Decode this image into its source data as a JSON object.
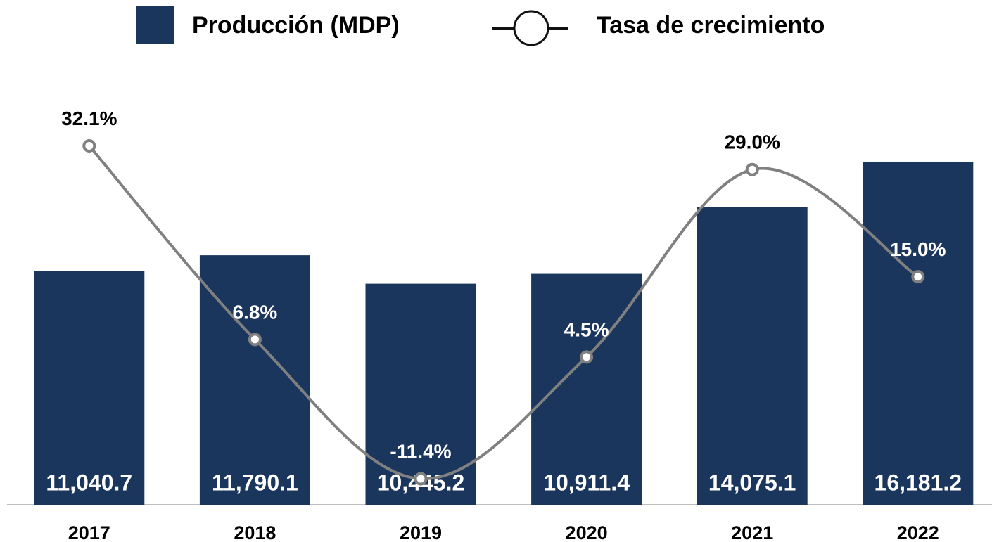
{
  "chart_data": {
    "type": "bar_line",
    "categories": [
      "2017",
      "2018",
      "2019",
      "2020",
      "2021",
      "2022"
    ],
    "series": [
      {
        "name": "Producción (MDP)",
        "type": "bar",
        "color": "#1b365d",
        "values": [
          11040.7,
          11790.1,
          10445.2,
          10911.4,
          14075.1,
          16181.2
        ],
        "value_labels": [
          "11,040.7",
          "11,790.1",
          "10,445.2",
          "10,911.4",
          "14,075.1",
          "16,181.2"
        ]
      },
      {
        "name": "Tasa de crecimiento",
        "type": "line",
        "axis": "y2",
        "color": "#808080",
        "values": [
          32.1,
          6.8,
          -11.4,
          4.5,
          29.0,
          15.0
        ],
        "value_labels": [
          "32.1%",
          "6.8%",
          "-11.4%",
          "4.5%",
          "29.0%",
          "15.0%"
        ]
      }
    ],
    "ylim": [
      0,
      20000
    ],
    "y2lim": [
      -14.8,
      40.5
    ],
    "legend": "top"
  }
}
